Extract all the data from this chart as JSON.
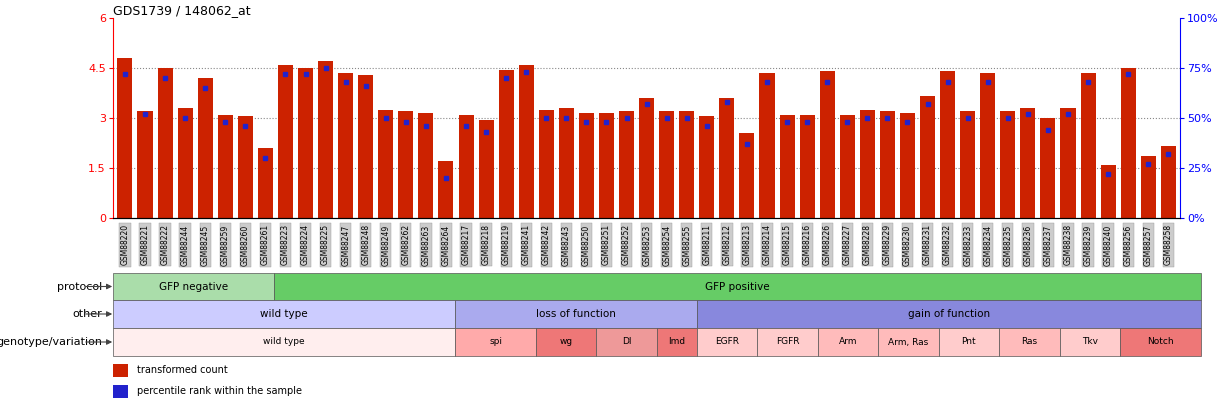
{
  "title": "GDS1739 / 148062_at",
  "samples": [
    "GSM88220",
    "GSM88221",
    "GSM88222",
    "GSM88244",
    "GSM88245",
    "GSM88259",
    "GSM88260",
    "GSM88261",
    "GSM88223",
    "GSM88224",
    "GSM88225",
    "GSM88247",
    "GSM88248",
    "GSM88249",
    "GSM88262",
    "GSM88263",
    "GSM88264",
    "GSM88217",
    "GSM88218",
    "GSM88219",
    "GSM88241",
    "GSM88242",
    "GSM88243",
    "GSM88250",
    "GSM88251",
    "GSM88252",
    "GSM88253",
    "GSM88254",
    "GSM88255",
    "GSM88211",
    "GSM88212",
    "GSM88213",
    "GSM88214",
    "GSM88215",
    "GSM88216",
    "GSM88226",
    "GSM88227",
    "GSM88228",
    "GSM88229",
    "GSM88230",
    "GSM88231",
    "GSM88232",
    "GSM88233",
    "GSM88234",
    "GSM88235",
    "GSM88236",
    "GSM88237",
    "GSM88238",
    "GSM88239",
    "GSM88240",
    "GSM88256",
    "GSM88257",
    "GSM88258"
  ],
  "bar_values": [
    4.8,
    3.2,
    4.5,
    3.3,
    4.2,
    3.1,
    3.05,
    2.1,
    4.6,
    4.5,
    4.7,
    4.35,
    4.3,
    3.25,
    3.2,
    3.15,
    1.7,
    3.1,
    2.95,
    4.45,
    4.6,
    3.25,
    3.3,
    3.15,
    3.15,
    3.2,
    3.6,
    3.2,
    3.2,
    3.05,
    3.6,
    2.55,
    4.35,
    3.1,
    3.1,
    4.4,
    3.1,
    3.25,
    3.2,
    3.15,
    3.65,
    4.4,
    3.2,
    4.35,
    3.2,
    3.3,
    3.0,
    3.3,
    4.35,
    1.6,
    4.5,
    1.85,
    2.15
  ],
  "percentile_values": [
    72,
    52,
    70,
    50,
    65,
    48,
    46,
    30,
    72,
    72,
    75,
    68,
    66,
    50,
    48,
    46,
    20,
    46,
    43,
    70,
    73,
    50,
    50,
    48,
    48,
    50,
    57,
    50,
    50,
    46,
    58,
    37,
    68,
    48,
    48,
    68,
    48,
    50,
    50,
    48,
    57,
    68,
    50,
    68,
    50,
    52,
    44,
    52,
    68,
    22,
    72,
    27,
    32
  ],
  "ylim_left": [
    0,
    6
  ],
  "ylim_right": [
    0,
    100
  ],
  "yticks_left": [
    0,
    1.5,
    3.0,
    4.5,
    6
  ],
  "yticks_right": [
    0,
    25,
    50,
    75,
    100
  ],
  "bar_color": "#cc2200",
  "percentile_color": "#2222cc",
  "grid_color": "#888888",
  "protocol_groups": [
    {
      "label": "GFP negative",
      "start": 0,
      "end": 7,
      "color": "#aaddaa"
    },
    {
      "label": "GFP positive",
      "start": 8,
      "end": 53,
      "color": "#66cc66"
    }
  ],
  "other_groups": [
    {
      "label": "wild type",
      "start": 0,
      "end": 16,
      "color": "#ccccff"
    },
    {
      "label": "loss of function",
      "start": 17,
      "end": 28,
      "color": "#aaaaee"
    },
    {
      "label": "gain of function",
      "start": 29,
      "end": 53,
      "color": "#8888dd"
    }
  ],
  "genotype_groups": [
    {
      "label": "wild type",
      "start": 0,
      "end": 16,
      "color": "#ffeeee"
    },
    {
      "label": "spi",
      "start": 17,
      "end": 20,
      "color": "#ffaaaa"
    },
    {
      "label": "wg",
      "start": 21,
      "end": 23,
      "color": "#ee7777"
    },
    {
      "label": "Dl",
      "start": 24,
      "end": 26,
      "color": "#ee9999"
    },
    {
      "label": "Imd",
      "start": 27,
      "end": 28,
      "color": "#ee7777"
    },
    {
      "label": "EGFR",
      "start": 29,
      "end": 31,
      "color": "#ffcccc"
    },
    {
      "label": "FGFR",
      "start": 32,
      "end": 34,
      "color": "#ffcccc"
    },
    {
      "label": "Arm",
      "start": 35,
      "end": 37,
      "color": "#ffbbbb"
    },
    {
      "label": "Arm, Ras",
      "start": 38,
      "end": 40,
      "color": "#ffbbbb"
    },
    {
      "label": "Pnt",
      "start": 41,
      "end": 43,
      "color": "#ffcccc"
    },
    {
      "label": "Ras",
      "start": 44,
      "end": 46,
      "color": "#ffbbbb"
    },
    {
      "label": "Tkv",
      "start": 47,
      "end": 49,
      "color": "#ffcccc"
    },
    {
      "label": "Notch",
      "start": 50,
      "end": 53,
      "color": "#ee7777"
    }
  ],
  "legend_items": [
    {
      "label": "transformed count",
      "color": "#cc2200"
    },
    {
      "label": "percentile rank within the sample",
      "color": "#2222cc"
    }
  ],
  "row_labels": [
    "protocol",
    "other",
    "genotype/variation"
  ],
  "tick_bg_color": "#cccccc"
}
